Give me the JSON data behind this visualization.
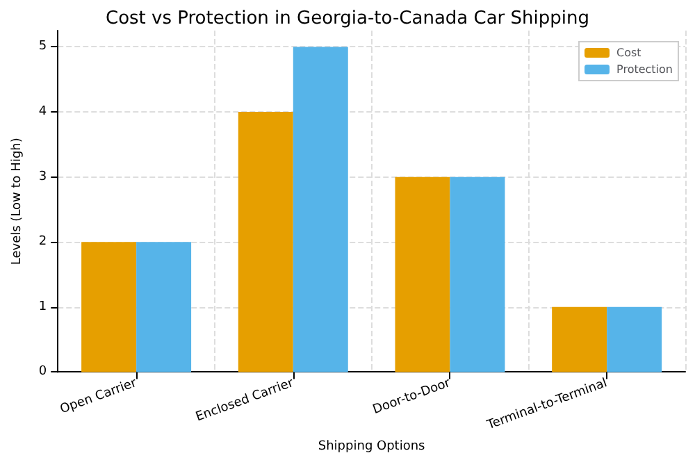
{
  "chart_data": {
    "type": "bar",
    "title": "Cost vs Protection in Georgia-to-Canada Car Shipping",
    "xlabel": "Shipping Options",
    "ylabel": "Levels (Low to High)",
    "categories": [
      "Open Carrier",
      "Enclosed Carrier",
      "Door-to-Door",
      "Terminal-to-Terminal"
    ],
    "series": [
      {
        "name": "Cost",
        "color": "#e69f00",
        "values": [
          2,
          4,
          3,
          1
        ]
      },
      {
        "name": "Protection",
        "color": "#56b4e9",
        "values": [
          2,
          5,
          3,
          1
        ]
      }
    ],
    "ylim": [
      0,
      5.25
    ],
    "yticks": [
      0,
      1,
      2,
      3,
      4,
      5
    ],
    "grid": true,
    "legend": "top right"
  }
}
